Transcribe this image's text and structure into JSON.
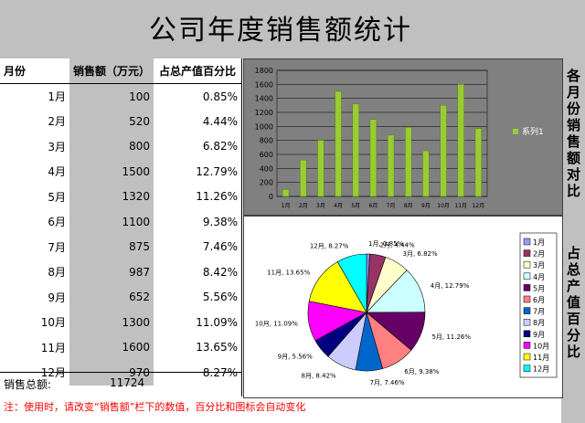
{
  "title": "公司年度销售额统计",
  "table": {
    "headers": [
      "月份",
      "销售额（万元）",
      "占总产值百分比"
    ],
    "rows": [
      {
        "month": "1月",
        "sales": "100",
        "pct": "0.85%"
      },
      {
        "month": "2月",
        "sales": "520",
        "pct": "4.44%"
      },
      {
        "month": "3月",
        "sales": "800",
        "pct": "6.82%"
      },
      {
        "month": "4月",
        "sales": "1500",
        "pct": "12.79%"
      },
      {
        "month": "5月",
        "sales": "1320",
        "pct": "11.26%"
      },
      {
        "month": "6月",
        "sales": "1100",
        "pct": "9.38%"
      },
      {
        "month": "7月",
        "sales": "875",
        "pct": "7.46%"
      },
      {
        "month": "8月",
        "sales": "987",
        "pct": "8.42%"
      },
      {
        "month": "9月",
        "sales": "652",
        "pct": "5.56%"
      },
      {
        "month": "10月",
        "sales": "1300",
        "pct": "11.09%"
      },
      {
        "month": "11月",
        "sales": "1600",
        "pct": "13.65%"
      },
      {
        "month": "12月",
        "sales": "970",
        "pct": "8.27%"
      }
    ],
    "total_label": "销售总额:",
    "total_value": "11724"
  },
  "note": "注：使用时，请改变“销售额”栏下的数值，百分比和图标会自动变化",
  "side_labels": {
    "bar": "各月份销售额对比",
    "pie": "占总产值百分比"
  },
  "chart_data": [
    {
      "type": "bar",
      "categories": [
        "1月",
        "2月",
        "3月",
        "4月",
        "5月",
        "6月",
        "7月",
        "8月",
        "9月",
        "10月",
        "11月",
        "12月"
      ],
      "series": [
        {
          "name": "系列1",
          "values": [
            100,
            520,
            800,
            1500,
            1320,
            1100,
            875,
            987,
            652,
            1300,
            1600,
            970
          ]
        }
      ],
      "ylim": [
        0,
        1800
      ],
      "yticks": [
        0,
        200,
        400,
        600,
        800,
        1000,
        1200,
        1400,
        1600,
        1800
      ],
      "legend": "right",
      "colors": {
        "bar": "#99cc33",
        "plot_bg": "#808080"
      }
    },
    {
      "type": "pie",
      "labels": [
        "1月",
        "2月",
        "3月",
        "4月",
        "5月",
        "6月",
        "7月",
        "8月",
        "9月",
        "10月",
        "11月",
        "12月"
      ],
      "values": [
        100,
        520,
        800,
        1500,
        1320,
        1100,
        875,
        987,
        652,
        1300,
        1600,
        970
      ],
      "data_labels": [
        "1月, 0.85%",
        "2月, 4.44%",
        "3月, 6.82%",
        "4月, 12.79%",
        "5月, 11.26%",
        "6月, 9.38%",
        "7月, 7.46%",
        "8月, 8.42%",
        "9月, 5.56%",
        "10月, 11.09%",
        "11月, 13.65%",
        "12月, 8.27%"
      ],
      "colors": [
        "#9999ff",
        "#993366",
        "#ffffcc",
        "#ccffff",
        "#660066",
        "#ff8080",
        "#0066cc",
        "#ccccff",
        "#000080",
        "#ff00ff",
        "#ffff00",
        "#00ffff"
      ],
      "legend": "right"
    }
  ]
}
